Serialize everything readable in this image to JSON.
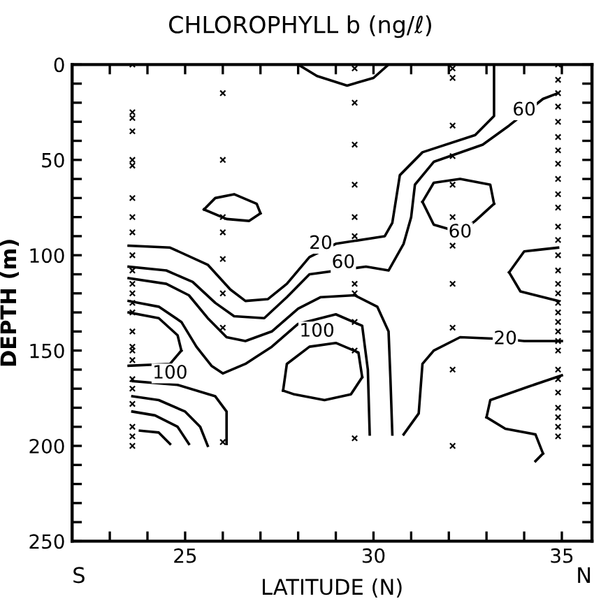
{
  "chart_data": {
    "type": "line",
    "title": "CHLOROPHYLL b (ng/ℓ)",
    "xlabel": "LATITUDE (N)",
    "ylabel": "DEPTH (m)",
    "xlim": [
      22,
      35.8
    ],
    "ylim": [
      250,
      0
    ],
    "xticks": [
      {
        "value": 23,
        "label": null
      },
      {
        "value": 24,
        "label": null
      },
      25,
      {
        "value": 26,
        "label": null
      },
      {
        "value": 27,
        "label": null
      },
      {
        "value": 28,
        "label": null
      },
      {
        "value": 29,
        "label": null
      },
      30,
      {
        "value": 31,
        "label": null
      },
      {
        "value": 32,
        "label": null
      },
      {
        "value": 33,
        "label": null
      },
      {
        "value": 34,
        "label": null
      },
      35
    ],
    "yticks": [
      0,
      {
        "value": 10,
        "label": null
      },
      {
        "value": 20,
        "label": null
      },
      {
        "value": 30,
        "label": null
      },
      {
        "value": 40,
        "label": null
      },
      50,
      {
        "value": 60,
        "label": null
      },
      {
        "value": 70,
        "label": null
      },
      {
        "value": 80,
        "label": null
      },
      {
        "value": 90,
        "label": null
      },
      100,
      {
        "value": 110,
        "label": null
      },
      {
        "value": 120,
        "label": null
      },
      {
        "value": 130,
        "label": null
      },
      {
        "value": 140,
        "label": null
      },
      150,
      {
        "value": 160,
        "label": null
      },
      {
        "value": 170,
        "label": null
      },
      {
        "value": 180,
        "label": null
      },
      {
        "value": 190,
        "label": null
      },
      200,
      {
        "value": 210,
        "label": null
      },
      {
        "value": 220,
        "label": null
      },
      {
        "value": 230,
        "label": null
      },
      {
        "value": 240,
        "label": null
      },
      250
    ],
    "grid": false,
    "legend": false,
    "line_style": "solid",
    "series": [
      {
        "color": "#000000",
        "x": [
          28.0,
          28.5,
          29.3,
          30.0,
          30.4
        ],
        "values": [
          0,
          6,
          11,
          7,
          0
        ]
      },
      {
        "color": "#000000",
        "x": [
          25.5,
          25.8,
          26.3,
          26.9,
          27.0
        ],
        "values": [
          76,
          70,
          68,
          73,
          78
        ]
      },
      {
        "color": "#000000",
        "x": [
          25.5,
          26.1,
          26.7,
          27.0
        ],
        "values": [
          76,
          81,
          82,
          78
        ]
      },
      {
        "color": "#000000",
        "x": [
          23.5,
          24.6,
          25.6,
          26.2,
          26.6,
          27.2,
          27.7,
          28.3,
          29.0,
          30.3,
          30.5,
          30.7,
          31.3,
          32.7,
          33.2,
          33.2,
          33.2
        ],
        "values": [
          95,
          96,
          105,
          118,
          124,
          123,
          115,
          101,
          94,
          90,
          83,
          58,
          46,
          37,
          27,
          9,
          0
        ]
      },
      {
        "color": "#000000",
        "x": [
          23.5,
          24.5,
          25.2,
          25.8,
          26.3,
          27.1,
          27.7,
          28.3,
          29.8,
          30.4,
          30.8,
          31.0,
          31.1,
          31.6,
          32.9,
          33.6,
          34.5,
          34.9
        ],
        "values": [
          106,
          108,
          114,
          125,
          132,
          133,
          122,
          110,
          106,
          108,
          94,
          80,
          63,
          51,
          42,
          32,
          18,
          15
        ]
      },
      {
        "color": "#000000",
        "x": [
          23.5,
          24.5,
          25.1,
          25.6,
          26.1,
          26.6,
          27.3,
          28.0,
          28.6,
          29.5,
          30.1,
          30.4,
          30.45,
          30.5
        ],
        "values": [
          112,
          115,
          121,
          133,
          143,
          145,
          140,
          128,
          122,
          121,
          127,
          140,
          165,
          194
        ]
      },
      {
        "color": "#000000",
        "x": [
          23.5,
          24.3,
          24.9,
          25.3,
          25.7,
          26.0,
          26.6,
          27.3,
          28.0,
          29.0,
          29.7,
          29.85,
          29.9
        ],
        "values": [
          124,
          127,
          135,
          148,
          158,
          162,
          157,
          148,
          136,
          131,
          137,
          160,
          194
        ]
      },
      {
        "color": "#000000",
        "x": [
          23.5,
          24.3,
          24.8,
          24.9
        ],
        "values": [
          130,
          133,
          142,
          150
        ]
      },
      {
        "color": "#000000",
        "x": [
          23.5,
          24.6,
          24.9
        ],
        "values": [
          158,
          157,
          150
        ]
      },
      {
        "color": "#000000",
        "x": [
          23.6,
          24.8,
          25.8,
          26.1,
          26.1
        ],
        "values": [
          166,
          168,
          174,
          182,
          199
        ]
      },
      {
        "color": "#000000",
        "x": [
          23.6,
          24.3,
          25.0,
          25.4,
          25.6
        ],
        "values": [
          174,
          176,
          182,
          190,
          200
        ]
      },
      {
        "color": "#000000",
        "x": [
          23.6,
          24.2,
          24.8,
          25.1
        ],
        "values": [
          182,
          184,
          190,
          199
        ]
      },
      {
        "color": "#000000",
        "x": [
          23.8,
          24.3,
          24.6
        ],
        "values": [
          192,
          193,
          199
        ]
      },
      {
        "color": "#000000",
        "x": [
          27.6,
          27.7,
          28.3,
          29.0,
          29.6,
          29.7
        ],
        "values": [
          171,
          157,
          148,
          146,
          151,
          164
        ]
      },
      {
        "color": "#000000",
        "x": [
          27.6,
          27.9,
          28.7,
          29.4,
          29.7
        ],
        "values": [
          171,
          173,
          176,
          173,
          164
        ]
      },
      {
        "color": "#000000",
        "x": [
          31.3,
          31.6,
          32.3,
          33.1,
          33.2
        ],
        "values": [
          72,
          62,
          60,
          63,
          73
        ]
      },
      {
        "color": "#000000",
        "x": [
          31.3,
          31.6,
          32.3,
          32.7,
          33.2
        ],
        "values": [
          72,
          84,
          88,
          82,
          73
        ]
      },
      {
        "color": "#000000",
        "x": [
          33.6,
          34.0,
          34.9
        ],
        "values": [
          109,
          98,
          96
        ]
      },
      {
        "color": "#000000",
        "x": [
          33.6,
          33.9,
          34.9
        ],
        "values": [
          109,
          119,
          124
        ]
      },
      {
        "color": "#000000",
        "x": [
          30.8,
          31.2,
          31.3,
          31.6,
          32.3,
          33.5,
          34.0,
          35.0
        ],
        "values": [
          194,
          183,
          157,
          150,
          143,
          144,
          145,
          145
        ]
      },
      {
        "color": "#000000",
        "x": [
          33.0,
          33.1,
          34.1,
          35.0
        ],
        "values": [
          185,
          176,
          169,
          163
        ]
      },
      {
        "color": "#000000",
        "x": [
          33.0,
          33.5,
          34.3,
          34.5
        ],
        "values": [
          185,
          191,
          194,
          204
        ]
      },
      {
        "color": "#000000",
        "x": [
          34.3,
          34.5
        ],
        "values": [
          208,
          204
        ]
      },
      {
        "type": "scatter",
        "marker": "cross",
        "color": "#000000",
        "x": [
          23.6,
          23.6,
          23.6,
          23.6,
          23.6,
          23.6,
          23.6,
          23.6,
          23.6,
          23.6,
          23.6,
          23.6,
          23.6,
          23.6,
          23.6,
          23.6,
          23.6,
          23.6,
          23.6,
          23.6,
          23.6,
          23.6,
          23.6,
          23.6,
          23.6,
          26.0,
          26.0,
          26.0,
          26.0,
          26.0,
          26.0,
          26.0,
          26.0,
          29.5,
          29.5,
          29.5,
          29.5,
          29.5,
          29.5,
          29.5,
          29.5,
          29.5,
          29.5,
          29.5,
          32.1,
          32.1,
          32.1,
          32.1,
          32.1,
          32.1,
          32.1,
          32.1,
          32.1,
          32.1,
          32.1,
          34.9,
          34.9,
          34.9,
          34.9,
          34.9,
          34.9,
          34.9,
          34.9,
          34.9,
          34.9,
          34.9,
          34.9,
          34.9,
          34.9,
          34.9,
          34.9,
          34.9,
          34.9,
          34.9,
          34.9,
          34.9,
          34.9,
          34.9,
          34.9,
          34.9,
          34.9,
          34.9,
          34.9,
          34.9,
          34.9
        ],
        "values": [
          0,
          25,
          28,
          35,
          50,
          53,
          70,
          80,
          88,
          100,
          108,
          115,
          120,
          125,
          130,
          140,
          148,
          150,
          155,
          165,
          170,
          178,
          190,
          195,
          200,
          15,
          50,
          80,
          88,
          102,
          120,
          138,
          198,
          2,
          20,
          42,
          63,
          80,
          90,
          115,
          120,
          135,
          150,
          196,
          2,
          7,
          32,
          48,
          63,
          80,
          95,
          115,
          138,
          160,
          200,
          0,
          8,
          15,
          22,
          30,
          38,
          45,
          52,
          60,
          68,
          75,
          85,
          92,
          100,
          108,
          115,
          120,
          125,
          130,
          135,
          140,
          145,
          150,
          160,
          165,
          172,
          180,
          185,
          190,
          195
        ]
      }
    ],
    "annotations": [
      "S",
      "N",
      {
        "text": "20",
        "x": 28.6,
        "y": 94
      },
      {
        "text": "60",
        "x": 29.2,
        "y": 104
      },
      {
        "text": "60",
        "x": 34.0,
        "y": 24
      },
      {
        "text": "60",
        "x": 32.3,
        "y": 88
      },
      {
        "text": "100",
        "x": 24.6,
        "y": 162
      },
      {
        "text": "100",
        "x": 28.5,
        "y": 140
      },
      {
        "text": "20",
        "x": 33.5,
        "y": 144
      }
    ]
  }
}
